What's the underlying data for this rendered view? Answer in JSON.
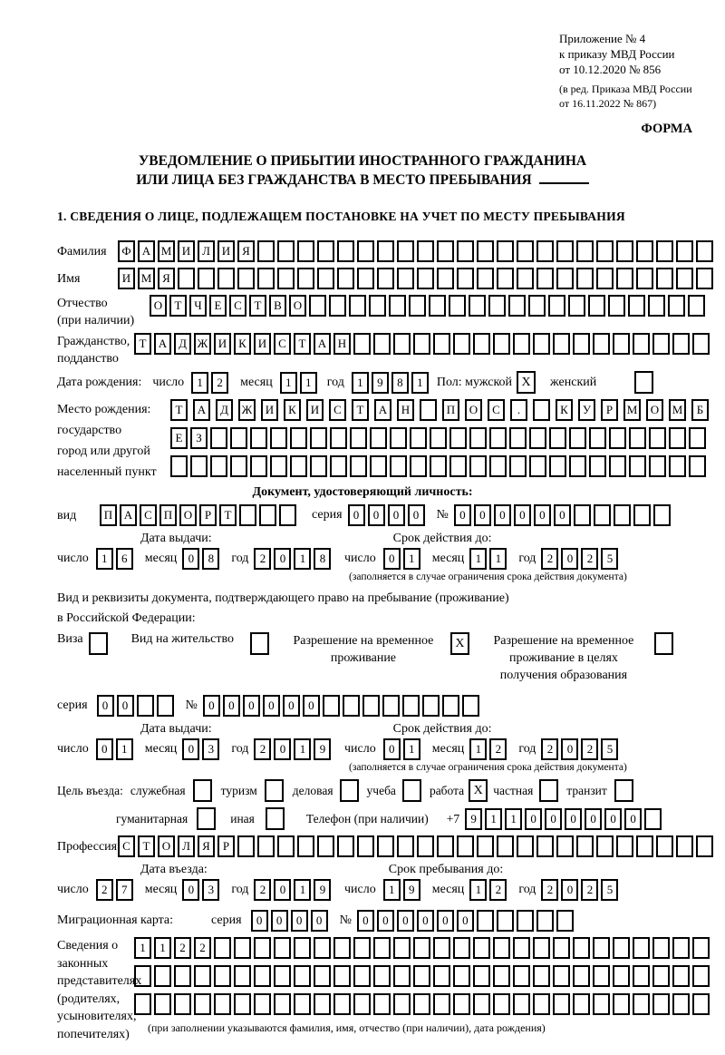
{
  "header": {
    "appendix": [
      "Приложение № 4",
      "к приказу МВД России",
      "от 10.12.2020 № 856"
    ],
    "amendment": [
      "(в ред. Приказа МВД России",
      "от 16.11.2022 № 867)"
    ],
    "form_caption": "ФОРМА"
  },
  "title": {
    "line1": "УВЕДОМЛЕНИЕ О ПРИБЫТИИ ИНОСТРАННОГО ГРАЖДАНИНА",
    "line2": "ИЛИ ЛИЦА БЕЗ ГРАЖДАНСТВА В МЕСТО ПРЕБЫВАНИЯ"
  },
  "section1": "1. СВЕДЕНИЯ О ЛИЦЕ, ПОДЛЕЖАЩЕМ ПОСТАНОВКЕ НА УЧЕТ ПО МЕСТУ ПРЕБЫВАНИЯ",
  "shared": {
    "day": "число",
    "month": "месяц",
    "year": "год",
    "series": "серия",
    "number": "№",
    "plus7": "+7",
    "issue_header": "Дата выдачи:",
    "expiry_header": "Срок действия до:",
    "expiry_note": "(заполняется в случае ограничения срока действия документа)"
  },
  "person": {
    "surname": {
      "label": "Фамилия",
      "grid": {
        "text": "ФАМИЛИЯ",
        "cells": 30
      }
    },
    "given_name": {
      "label": "Имя",
      "grid": {
        "text": "ИМЯ",
        "cells": 30
      }
    },
    "patronymic": {
      "label": "Отчество",
      "sublabel": "(при наличии)",
      "grid": {
        "text": "ОТЧЕСТВО",
        "cells": 28
      }
    },
    "citizenship": {
      "label": "Гражданство,",
      "sublabel": "подданство",
      "grid": {
        "text": "ТАДЖИКИСТАН",
        "cells": 29
      }
    },
    "birth_date": {
      "label": "Дата рождения:",
      "day": "12",
      "month": "11",
      "year": "1981"
    },
    "sex": {
      "label": "Пол:",
      "male_label": "мужской",
      "male_checked": true,
      "female_label": "женский",
      "female_checked": false
    },
    "birth_place": {
      "label_lines": [
        "Место рождения:",
        "государство",
        "город или другой",
        "населенный пункт"
      ],
      "row1": {
        "text": "ТАДЖИКИСТАН ПОС. КУРМОМБ",
        "cells": 24
      },
      "row2": {
        "text": "ЕЗ",
        "cells": 27
      },
      "row3": {
        "text": "",
        "cells": 27
      }
    }
  },
  "identity_doc": {
    "heading": "Документ, удостоверяющий личность:",
    "kind_label": "вид",
    "kind": {
      "text": "ПАСПОРТ",
      "cells": 10
    },
    "series": {
      "text": "0000",
      "cells": 4
    },
    "number": {
      "text": "000000",
      "cells": 11
    },
    "issue": {
      "day": "16",
      "month": "08",
      "year": "2018"
    },
    "expiry": {
      "day": "01",
      "month": "11",
      "year": "2025"
    }
  },
  "residence_doc": {
    "intro1": "Вид и реквизиты документа, подтверждающего право на пребывание (проживание)",
    "intro2": "в Российской Федерации:",
    "options": [
      {
        "label": "Виза",
        "checked": false
      },
      {
        "label": "Вид на жительство",
        "checked": false
      },
      {
        "label": "Разрешение на временное проживание",
        "checked": true
      },
      {
        "label": "Разрешение на временное проживание в целях получения образования",
        "checked": false
      }
    ],
    "series": {
      "text": "00",
      "cells": 4
    },
    "number": {
      "text": "000000",
      "cells": 14
    },
    "issue": {
      "day": "01",
      "month": "03",
      "year": "2019"
    },
    "expiry": {
      "day": "01",
      "month": "12",
      "year": "2025"
    }
  },
  "visit": {
    "purpose_label": "Цель въезда:",
    "purposes": [
      {
        "label": "служебная",
        "checked": false
      },
      {
        "label": "туризм",
        "checked": false
      },
      {
        "label": "деловая",
        "checked": false
      },
      {
        "label": "учеба",
        "checked": false
      },
      {
        "label": "работа",
        "checked": true
      },
      {
        "label": "частная",
        "checked": false
      },
      {
        "label": "транзит",
        "checked": false
      },
      {
        "label": "гуманитарная",
        "checked": false
      },
      {
        "label": "иная",
        "checked": false
      }
    ],
    "phone_label": "Телефон (при наличии)",
    "phone": {
      "text": "911000000",
      "cells": 10
    },
    "profession_label": "Профессия",
    "profession": {
      "text": "СТОЛЯР",
      "cells": 30
    },
    "entry_header": "Дата въезда:",
    "stay_header": "Срок пребывания до:",
    "entry": {
      "day": "27",
      "month": "03",
      "year": "2019"
    },
    "stay_until": {
      "day": "19",
      "month": "12",
      "year": "2025"
    }
  },
  "migration_card": {
    "label": "Миграционная карта:",
    "series": {
      "text": "0000",
      "cells": 4
    },
    "number": {
      "text": "000000",
      "cells": 11
    }
  },
  "representatives": {
    "label_lines": [
      "Сведения о",
      "законных",
      "представителях",
      "(родителях,",
      "усыновителях,",
      "попечителях)"
    ],
    "row1": {
      "text": "1122",
      "cells": 29
    },
    "row2": {
      "text": "",
      "cells": 29
    },
    "row3": {
      "text": "",
      "cells": 29
    },
    "note": "(при заполнении указываются фамилия, имя, отчество (при наличии), дата рождения)"
  }
}
